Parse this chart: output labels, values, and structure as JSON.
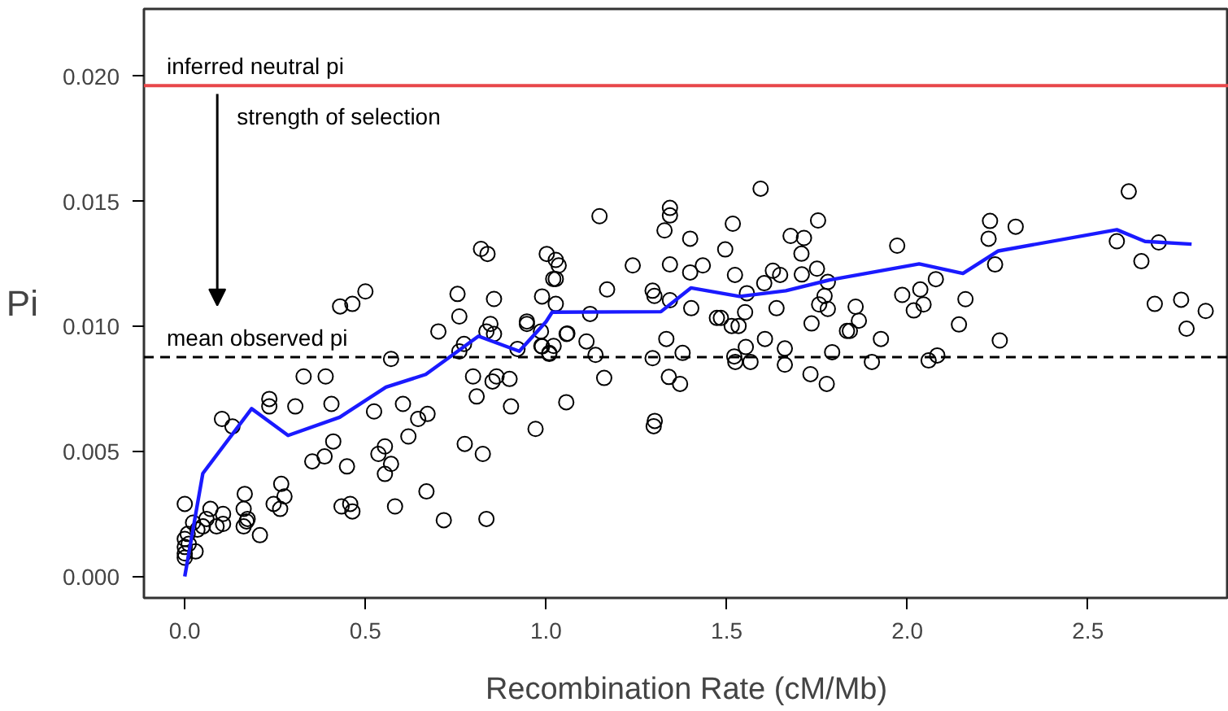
{
  "chart_data": {
    "type": "scatter",
    "xlabel": "Recombination Rate (cM/Mb)",
    "ylabel": "Pi",
    "xlim": [
      -0.113,
      2.89
    ],
    "ylim": [
      -0.00086,
      0.0227
    ],
    "xticks": [
      {
        "value": 0,
        "label": "0.0"
      },
      0.5,
      {
        "value": 1,
        "label": "1.0"
      },
      1.5,
      {
        "value": 2,
        "label": "2.0"
      },
      2.5
    ],
    "yticks": [
      {
        "value": 0,
        "label": "0.000"
      },
      0.005,
      {
        "value": 0.01,
        "label": "0.010"
      },
      0.015,
      {
        "value": 0.02,
        "label": "0.020"
      }
    ],
    "grid": false,
    "marker": "circle",
    "ref_lines": [
      {
        "axis": "y",
        "value": 0.01963,
        "label": "inferred neutral pi",
        "color": "#e8474a",
        "line_style": "solid"
      },
      {
        "axis": "y",
        "value": 0.00877,
        "label": "mean observed pi",
        "color": "#000000",
        "line_style": "dashed"
      }
    ],
    "annotations": [
      {
        "text": "strength of selection",
        "x": 0.09,
        "y": 0.0193
      }
    ],
    "series": [
      {
        "color": "#000000",
        "x": [
          0,
          0,
          0,
          0,
          0,
          0.008,
          0.011,
          0.023,
          0.03,
          0.035,
          0.05,
          0.06,
          0.071,
          0.088,
          0.106,
          0.106,
          0.103,
          0.132,
          0.166,
          0.163,
          0.163,
          0.171,
          0.174,
          0.208,
          0.234,
          0.234,
          0.246,
          0.264,
          0.267,
          0.276,
          0.306,
          0.329,
          0.353,
          0.387,
          0.39,
          0.406,
          0.411,
          0.434,
          0.449,
          0.458,
          0.464,
          0.524,
          0.536,
          0.554,
          0.554,
          0.571,
          0.571,
          0.582,
          0.604,
          0.619,
          0.646,
          0.669,
          0.672,
          0.702,
          0.717,
          0.76,
          0.773,
          0.775,
          0.798,
          0.808,
          0.825,
          0.835,
          0.835,
          0.846,
          0.852,
          0.863,
          0.856,
          0.899,
          0.903,
          0.947,
          0.921,
          0.971,
          0.986,
          0.989,
          1.009,
          0.43,
          0.464,
          0.5,
          0.755,
          0.76,
          0.82,
          0.838,
          0.856,
          0.947,
          0.989,
          1.002,
          1.02,
          1.027,
          1.035,
          1.027,
          1.027,
          1.057,
          1.122,
          1.148,
          1.169,
          1.112,
          1.24,
          1.295,
          1.3,
          1.333,
          1.343,
          1.343,
          1.328,
          1.343,
          1.343,
          1.399,
          1.399,
          1.402,
          1.434,
          1.473,
          1.484,
          1.496,
          1.517,
          1.523,
          1.514,
          1.533,
          1.551,
          1.556,
          1.553,
          1.594,
          1.604,
          1.628,
          1.648,
          1.606,
          1.638,
          1.677,
          1.714,
          1.707,
          1.708,
          1.75,
          1.753,
          1.78,
          1.771,
          1.756,
          1.78,
          1.735,
          1.857,
          1.866,
          1.833,
          1.841,
          1.927,
          1.972,
          1.986,
          2.036,
          2.045,
          2.018,
          2.079,
          1.661,
          1.059,
          0.987,
          1.021,
          1.009,
          1.137,
          1.161,
          1.056,
          1.295,
          1.378,
          1.34,
          1.371,
          1.301,
          1.298,
          1.521,
          1.524,
          1.566,
          1.661,
          1.732,
          1.777,
          1.792,
          1.902,
          2.059,
          2.083,
          2.161,
          2.143,
          2.256,
          2.229,
          2.225,
          2.3,
          2.243,
          2.613,
          2.58,
          2.696,
          2.648,
          2.685,
          2.758,
          2.773,
          2.826
        ],
        "values": [
          0.0029,
          0.0015,
          0.00118,
          0.00092,
          0.00075,
          0.0017,
          0.0013,
          0.00215,
          0.001,
          0.00187,
          0.002,
          0.0023,
          0.0027,
          0.002,
          0.0025,
          0.0021,
          0.0063,
          0.006,
          0.0033,
          0.0027,
          0.002,
          0.0022,
          0.0023,
          0.00165,
          0.0071,
          0.0068,
          0.0029,
          0.0027,
          0.0037,
          0.0032,
          0.0068,
          0.008,
          0.0046,
          0.0048,
          0.008,
          0.0069,
          0.0054,
          0.0028,
          0.0044,
          0.0029,
          0.0026,
          0.0066,
          0.0049,
          0.0052,
          0.0041,
          0.0045,
          0.0087,
          0.0028,
          0.0069,
          0.0056,
          0.0063,
          0.0034,
          0.0065,
          0.0098,
          0.00225,
          0.009,
          0.0093,
          0.0053,
          0.008,
          0.0072,
          0.0049,
          0.0023,
          0.0098,
          0.0101,
          0.0078,
          0.008,
          0.0097,
          0.0079,
          0.0068,
          0.0101,
          0.0091,
          0.0059,
          0.0098,
          0.0092,
          0.0089,
          0.0108,
          0.0109,
          0.0114,
          0.0113,
          0.0104,
          0.0131,
          0.0129,
          0.0111,
          0.0102,
          0.0112,
          0.0129,
          0.0119,
          0.01266,
          0.01244,
          0.0119,
          0.0109,
          0.0097,
          0.0105,
          0.01441,
          0.01148,
          0.0094,
          0.01244,
          0.01143,
          0.01122,
          0.0095,
          0.01474,
          0.01444,
          0.01384,
          0.01248,
          0.01105,
          0.01351,
          0.01216,
          0.01073,
          0.01244,
          0.01034,
          0.01034,
          0.01308,
          0.01411,
          0.01206,
          0.01002,
          0.01002,
          0.01057,
          0.01133,
          0.00918,
          0.01551,
          0.01173,
          0.01223,
          0.01206,
          0.0095,
          0.01073,
          0.01362,
          0.01354,
          0.01291,
          0.01208,
          0.01231,
          0.01424,
          0.01178,
          0.01122,
          0.01088,
          0.0107,
          0.01012,
          0.01079,
          0.01023,
          0.00982,
          0.00982,
          0.0095,
          0.01323,
          0.01126,
          0.01148,
          0.01088,
          0.01064,
          0.01189,
          0.00912,
          0.00972,
          0.00922,
          0.00922,
          0.00894,
          0.00886,
          0.00794,
          0.00697,
          0.00873,
          0.00894,
          0.00798,
          0.0077,
          0.00622,
          0.00601,
          0.0088,
          0.00858,
          0.00858,
          0.00847,
          0.00809,
          0.0077,
          0.00897,
          0.00858,
          0.00864,
          0.00884,
          0.01109,
          0.01008,
          0.00944,
          0.01422,
          0.01351,
          0.01399,
          0.01248,
          0.0154,
          0.01341,
          0.01336,
          0.01261,
          0.0109,
          0.01107,
          0.00991,
          0.01062
        ]
      },
      {
        "type": "line",
        "color": "#1a1aff",
        "marker": "none",
        "line_style": "solid",
        "x": [
          0,
          0.05,
          0.185,
          0.286,
          0.429,
          0.557,
          0.667,
          0.813,
          0.926,
          1.0,
          1.017,
          1.318,
          1.401,
          1.536,
          1.664,
          1.785,
          2.033,
          2.154,
          2.252,
          2.58,
          2.658,
          2.787
        ],
        "values": [
          0,
          0.00412,
          0.00671,
          0.00564,
          0.00637,
          0.00757,
          0.00808,
          0.00961,
          0.00901,
          0.01019,
          0.01057,
          0.01059,
          0.01154,
          0.0112,
          0.01143,
          0.01186,
          0.0125,
          0.01212,
          0.01302,
          0.01387,
          0.0134,
          0.01329
        ]
      }
    ]
  }
}
